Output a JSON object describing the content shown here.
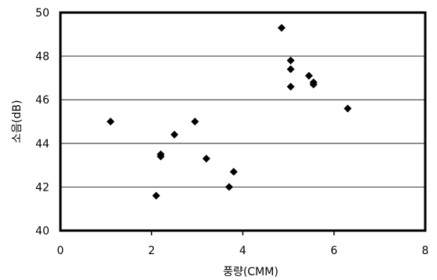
{
  "chart_data": {
    "type": "scatter",
    "title": "",
    "xlabel": "풍량(CMM)",
    "ylabel": "소음(dB)",
    "xlim": [
      0,
      8
    ],
    "ylim": [
      40,
      50
    ],
    "x_ticks": [
      "0",
      "2",
      "4",
      "6",
      "8"
    ],
    "y_ticks": [
      "40",
      "42",
      "44",
      "46",
      "48",
      "50"
    ],
    "grid": "horizontal-only",
    "marker": "diamond",
    "marker_color": "#000000",
    "points": [
      {
        "x": 1.1,
        "y": 45.0
      },
      {
        "x": 2.1,
        "y": 41.6
      },
      {
        "x": 2.2,
        "y": 43.5
      },
      {
        "x": 2.2,
        "y": 43.4
      },
      {
        "x": 2.5,
        "y": 44.4
      },
      {
        "x": 2.95,
        "y": 45.0
      },
      {
        "x": 3.2,
        "y": 43.3
      },
      {
        "x": 3.7,
        "y": 42.0
      },
      {
        "x": 3.8,
        "y": 42.7
      },
      {
        "x": 4.85,
        "y": 49.3
      },
      {
        "x": 5.05,
        "y": 47.8
      },
      {
        "x": 5.05,
        "y": 47.4
      },
      {
        "x": 5.05,
        "y": 46.6
      },
      {
        "x": 5.45,
        "y": 47.1
      },
      {
        "x": 5.55,
        "y": 46.8
      },
      {
        "x": 5.55,
        "y": 46.7
      },
      {
        "x": 6.3,
        "y": 45.6
      }
    ]
  }
}
